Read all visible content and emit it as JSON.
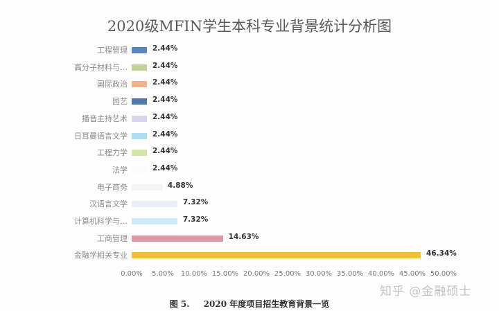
{
  "chart_data": {
    "type": "bar",
    "orientation": "horizontal",
    "title": "2020级MFIN学生本科专业背景统计分析图",
    "xlabel": "",
    "ylabel": "",
    "xlim": [
      0,
      50
    ],
    "grid": false,
    "legend": "none",
    "categories": [
      "工程管理",
      "高分子材料与…",
      "国际政治",
      "园艺",
      "播音主持艺术",
      "日耳曼语言文学",
      "工程力学",
      "法学",
      "电子商务",
      "汉语言文学",
      "计算机科学与…",
      "工商管理",
      "金融学相关专业"
    ],
    "values": [
      2.44,
      2.44,
      2.44,
      2.44,
      2.44,
      2.44,
      2.44,
      2.44,
      4.88,
      7.32,
      7.32,
      14.63,
      46.34
    ],
    "value_labels": [
      "2.44%",
      "2.44%",
      "2.44%",
      "2.44%",
      "2.44%",
      "2.44%",
      "2.44%",
      "2.44%",
      "4.88%",
      "7.32%",
      "7.32%",
      "14.63%",
      "46.34%"
    ],
    "colors": [
      "#5b86bd",
      "#c3d29b",
      "#f6b08b",
      "#5077ac",
      "#d6d6f0",
      "#aee0f2",
      "#d5e5a8",
      "#fbfbfb",
      "#f2f4f8",
      "#eceef6",
      "#cfeaf6",
      "#dd9aa6",
      "#f0be3c"
    ],
    "x_tick_labels": [
      "0.00%",
      "5.00%",
      "10.00%",
      "15.00%",
      "20.00%",
      "25.00%",
      "30.00%",
      "35.00%",
      "40.00%",
      "45.00%",
      "50.00%"
    ]
  },
  "caption": {
    "figure": "图 5.",
    "text": "2020 年度项目招生教育背景一览"
  },
  "watermark": "知乎 @金融硕士"
}
